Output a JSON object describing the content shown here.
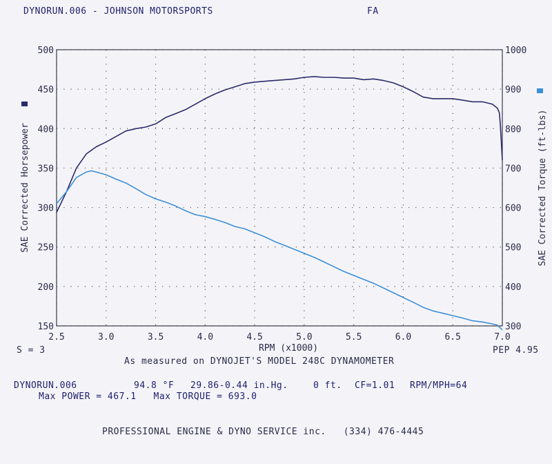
{
  "header": {
    "file": "DYNORUN.006 - JOHNSON MOTORSPORTS",
    "tag": "FA"
  },
  "chart_data": {
    "type": "line",
    "x_axis": {
      "label": "RPM (x1000)",
      "range": [
        2.5,
        7.0
      ],
      "ticks": [
        "2.5",
        "3.0",
        "3.5",
        "4.0",
        "4.5",
        "5.0",
        "5.5",
        "6.0",
        "6.5",
        "7.0"
      ]
    },
    "y_left": {
      "label": "SAE Corrected Horsepower",
      "range": [
        150,
        500
      ],
      "ticks": [
        "150",
        "200",
        "250",
        "300",
        "350",
        "400",
        "450",
        "500"
      ]
    },
    "y_right": {
      "label": "SAE Corrected Torque (ft-lbs)",
      "range": [
        300,
        1000
      ],
      "ticks": [
        "300",
        "400",
        "500",
        "600",
        "700",
        "800",
        "900",
        "1000"
      ]
    },
    "grid": true,
    "series": [
      {
        "axis": "left",
        "color": "#2b2a6b",
        "points": [
          [
            2.5,
            294
          ],
          [
            2.6,
            320
          ],
          [
            2.7,
            350
          ],
          [
            2.8,
            368
          ],
          [
            2.9,
            377
          ],
          [
            3.0,
            383
          ],
          [
            3.1,
            390
          ],
          [
            3.2,
            397
          ],
          [
            3.3,
            400
          ],
          [
            3.4,
            402
          ],
          [
            3.5,
            406
          ],
          [
            3.6,
            414
          ],
          [
            3.7,
            419
          ],
          [
            3.8,
            424
          ],
          [
            3.9,
            431
          ],
          [
            4.0,
            438
          ],
          [
            4.1,
            444
          ],
          [
            4.2,
            449
          ],
          [
            4.3,
            453
          ],
          [
            4.4,
            457
          ],
          [
            4.5,
            459
          ],
          [
            4.6,
            460
          ],
          [
            4.7,
            461
          ],
          [
            4.8,
            462
          ],
          [
            4.9,
            463
          ],
          [
            5.0,
            465
          ],
          [
            5.1,
            466
          ],
          [
            5.2,
            465
          ],
          [
            5.3,
            465
          ],
          [
            5.4,
            464
          ],
          [
            5.5,
            464
          ],
          [
            5.6,
            462
          ],
          [
            5.7,
            463
          ],
          [
            5.8,
            461
          ],
          [
            5.9,
            458
          ],
          [
            6.0,
            453
          ],
          [
            6.1,
            447
          ],
          [
            6.2,
            440
          ],
          [
            6.3,
            438
          ],
          [
            6.4,
            438
          ],
          [
            6.5,
            438
          ],
          [
            6.6,
            436
          ],
          [
            6.7,
            434
          ],
          [
            6.8,
            434
          ],
          [
            6.9,
            431
          ],
          [
            6.95,
            426
          ],
          [
            6.97,
            420
          ],
          [
            6.98,
            405
          ],
          [
            7.0,
            360
          ]
        ]
      },
      {
        "axis": "right",
        "color": "#3d8fd6",
        "points": [
          [
            2.5,
            610
          ],
          [
            2.6,
            640
          ],
          [
            2.7,
            676
          ],
          [
            2.8,
            690
          ],
          [
            2.85,
            693
          ],
          [
            2.9,
            690
          ],
          [
            3.0,
            683
          ],
          [
            3.1,
            672
          ],
          [
            3.2,
            662
          ],
          [
            3.3,
            648
          ],
          [
            3.4,
            633
          ],
          [
            3.5,
            622
          ],
          [
            3.6,
            614
          ],
          [
            3.7,
            604
          ],
          [
            3.8,
            592
          ],
          [
            3.9,
            582
          ],
          [
            4.0,
            577
          ],
          [
            4.1,
            570
          ],
          [
            4.2,
            562
          ],
          [
            4.3,
            552
          ],
          [
            4.4,
            546
          ],
          [
            4.5,
            536
          ],
          [
            4.6,
            526
          ],
          [
            4.7,
            514
          ],
          [
            4.8,
            504
          ],
          [
            4.9,
            494
          ],
          [
            5.0,
            484
          ],
          [
            5.1,
            474
          ],
          [
            5.2,
            462
          ],
          [
            5.3,
            450
          ],
          [
            5.4,
            438
          ],
          [
            5.5,
            428
          ],
          [
            5.6,
            418
          ],
          [
            5.7,
            408
          ],
          [
            5.8,
            396
          ],
          [
            5.9,
            384
          ],
          [
            6.0,
            372
          ],
          [
            6.1,
            360
          ],
          [
            6.2,
            347
          ],
          [
            6.3,
            338
          ],
          [
            6.4,
            332
          ],
          [
            6.5,
            326
          ],
          [
            6.6,
            320
          ],
          [
            6.7,
            313
          ],
          [
            6.8,
            310
          ],
          [
            6.9,
            305
          ],
          [
            6.95,
            302
          ],
          [
            7.0,
            290
          ]
        ]
      }
    ]
  },
  "footer": {
    "s_value": "S = 3",
    "pep": "PEP 4.95",
    "dyno_line": "As measured on DYNOJET'S MODEL 248C DYNAMOMETER",
    "run": {
      "file": "DYNORUN.006",
      "temp": "94.8 °F",
      "baro": "29.86-0.44 in.Hg.",
      "alt": "0 ft.",
      "cf": "CF=1.01",
      "rpm_mph": "RPM/MPH=64"
    },
    "max": "Max POWER = 467.1   Max TORQUE = 693.0",
    "shop": "PROFESSIONAL ENGINE & DYNO SERVICE inc.   (334) 476-4445"
  }
}
